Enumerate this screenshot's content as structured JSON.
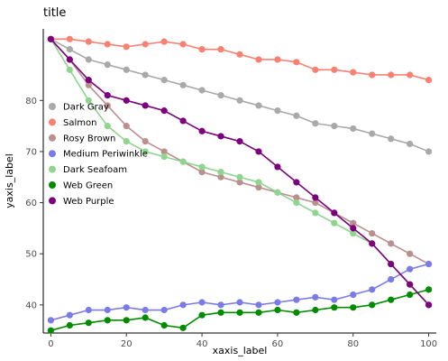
{
  "chart_data": {
    "type": "line",
    "title": "title",
    "xlabel": "xaxis_label",
    "ylabel": "yaxis_label",
    "xlim": [
      -2,
      102
    ],
    "ylim": [
      34.5,
      94
    ],
    "x_ticks": [
      0,
      20,
      40,
      60,
      80,
      100
    ],
    "y_ticks": [
      40,
      50,
      60,
      70,
      80
    ],
    "grid": false,
    "legend_position": "left",
    "x": [
      0,
      5,
      10,
      15,
      20,
      25,
      30,
      35,
      40,
      45,
      50,
      55,
      60,
      65,
      70,
      75,
      80,
      85,
      90,
      95,
      100
    ],
    "series": [
      {
        "name": "Dark Gray",
        "color": "#a9a9a9",
        "values": [
          92,
          90,
          88,
          87,
          86,
          85,
          84,
          83,
          82,
          81,
          80,
          79,
          78,
          77,
          75.5,
          75,
          74.5,
          73.5,
          72.5,
          71.5,
          70
        ]
      },
      {
        "name": "Salmon",
        "color": "#fa8072",
        "values": [
          92,
          92,
          91.5,
          91,
          90.5,
          91,
          91.5,
          91,
          90,
          90,
          89,
          88,
          88,
          87.5,
          86,
          86,
          85.5,
          85,
          85,
          85,
          84
        ]
      },
      {
        "name": "Rosy Brown",
        "color": "#bc8f8f",
        "values": [
          92,
          88,
          83,
          79,
          75,
          72,
          70,
          68,
          66,
          65,
          64,
          63,
          62,
          61,
          60,
          58,
          56,
          54,
          52,
          50,
          48
        ]
      },
      {
        "name": "Medium Periwinkle",
        "color": "#7b7be8",
        "values": [
          37,
          38,
          39,
          39,
          39.5,
          39,
          39,
          40,
          40.5,
          40,
          40.5,
          40,
          40.5,
          41,
          41.5,
          41,
          42,
          43,
          45,
          47,
          48
        ]
      },
      {
        "name": "Dark Seafoam",
        "color": "#8fd48f",
        "values": [
          92,
          86,
          80,
          75,
          72,
          70,
          69,
          68,
          67,
          66,
          65,
          64,
          62,
          60,
          58,
          56,
          54,
          52,
          48,
          44,
          40
        ]
      },
      {
        "name": "Web Green",
        "color": "#008b00",
        "values": [
          35,
          36,
          36.5,
          37,
          37,
          37.5,
          36,
          35.5,
          38,
          38.5,
          38.5,
          38.5,
          39,
          38.5,
          39,
          39.5,
          39.5,
          40,
          41,
          42,
          43
        ]
      },
      {
        "name": "Web Purple",
        "color": "#7d007d",
        "values": [
          92,
          88,
          84,
          81,
          80,
          79,
          78,
          76,
          74,
          73,
          72,
          70,
          67,
          64,
          61,
          58,
          55,
          52,
          48,
          44,
          40
        ]
      }
    ]
  }
}
